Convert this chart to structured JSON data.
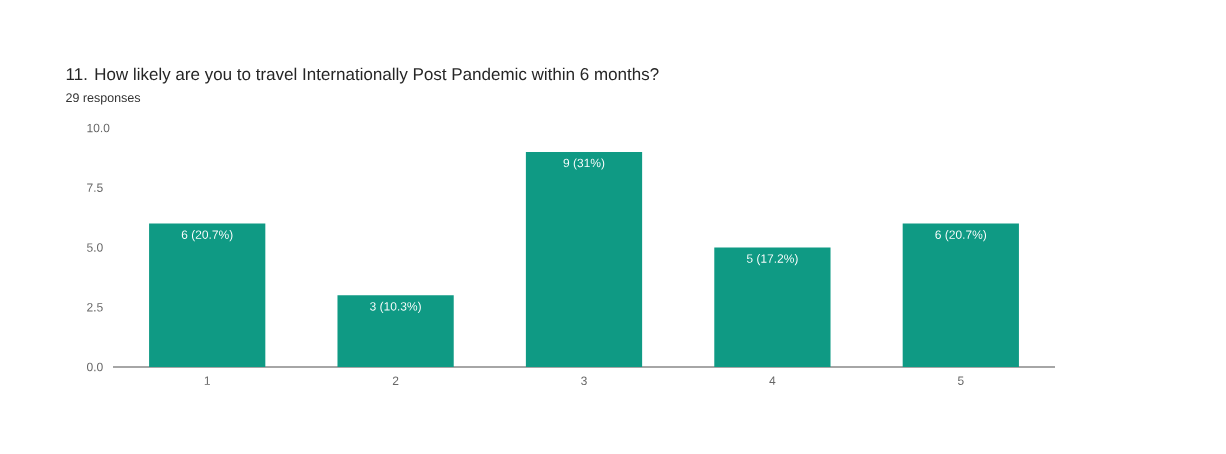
{
  "chart_data": {
    "type": "bar",
    "title": "11. How likely are you to travel Internationally Post Pandemic within 6 months?",
    "subtitle": "29 responses",
    "categories": [
      "1",
      "2",
      "3",
      "4",
      "5"
    ],
    "values": [
      6,
      3,
      9,
      5,
      6
    ],
    "value_labels": [
      "6 (20.7%)",
      "3 (10.3%)",
      "9 (31%)",
      "5 (17.2%)",
      "6 (20.7%)"
    ],
    "color": "#0f9a84",
    "ylim": [
      0,
      10
    ],
    "yticks": [
      {
        "value": 0,
        "label": "0.0"
      },
      {
        "value": 2.5,
        "label": "2.5"
      },
      {
        "value": 5,
        "label": "5.0"
      },
      {
        "value": 7.5,
        "label": "7.5"
      },
      {
        "value": 10,
        "label": "10.0"
      }
    ]
  }
}
